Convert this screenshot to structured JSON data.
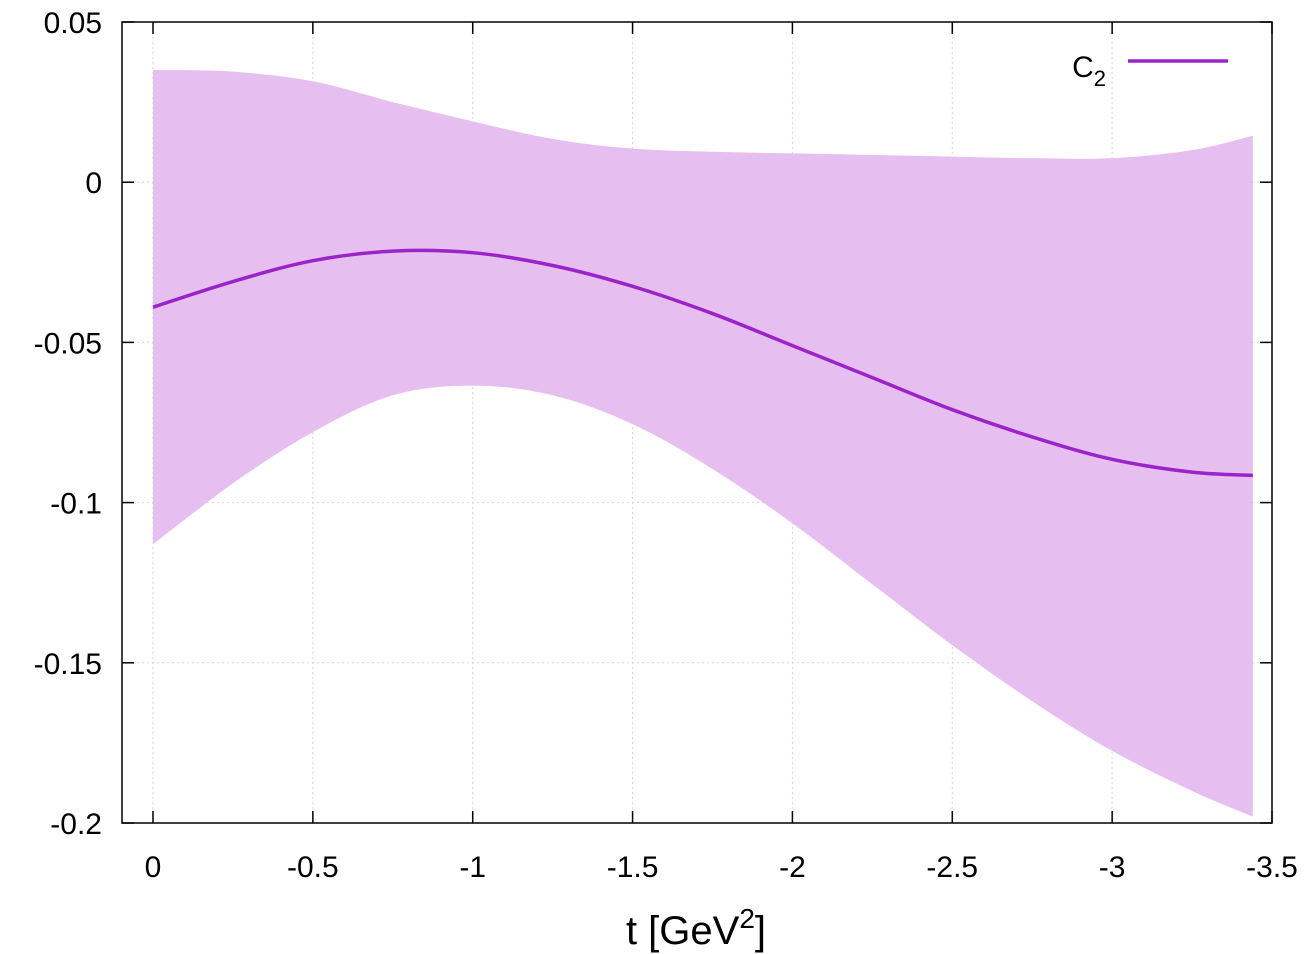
{
  "chart_data": {
    "type": "line",
    "xlabel": "t [GeV",
    "xlabel_sup": "2",
    "xlabel_close": "]",
    "ylabel": "",
    "xlim": [
      0,
      -3.5
    ],
    "ylim": [
      -0.2,
      0.05
    ],
    "x_ticks": [
      0,
      -0.5,
      -1,
      -1.5,
      -2,
      -2.5,
      -3,
      -3.5
    ],
    "x_tick_labels": [
      "0",
      "-0.5",
      "-1",
      "-1.5",
      "-2",
      "-2.5",
      "-3",
      "-3.5"
    ],
    "y_ticks": [
      0.05,
      0,
      -0.05,
      -0.1,
      -0.15,
      -0.2
    ],
    "y_tick_labels": [
      "0.05",
      "0",
      "-0.05",
      "-0.1",
      "-0.15",
      "-0.2"
    ],
    "grid": true,
    "legend_position": "top-right",
    "series": [
      {
        "name": "C",
        "name_sub": "2",
        "color": "#9a23c9",
        "band_color": "#e6bff0",
        "x": [
          0,
          -0.25,
          -0.5,
          -0.75,
          -1,
          -1.25,
          -1.5,
          -1.75,
          -2,
          -2.25,
          -2.5,
          -2.75,
          -3,
          -3.25,
          -3.44
        ],
        "values": [
          -0.039,
          -0.031,
          -0.0245,
          -0.0215,
          -0.022,
          -0.026,
          -0.0325,
          -0.041,
          -0.051,
          -0.061,
          -0.071,
          -0.0795,
          -0.0865,
          -0.0905,
          -0.0915
        ],
        "lower": [
          -0.113,
          -0.094,
          -0.078,
          -0.0665,
          -0.0635,
          -0.0665,
          -0.0755,
          -0.0895,
          -0.1065,
          -0.1255,
          -0.1445,
          -0.162,
          -0.1775,
          -0.19,
          -0.198
        ],
        "upper": [
          0.035,
          0.0345,
          0.0315,
          0.025,
          0.019,
          0.0135,
          0.0105,
          0.0095,
          0.009,
          0.0085,
          0.008,
          0.0075,
          0.0075,
          0.01,
          0.0145
        ]
      }
    ]
  }
}
